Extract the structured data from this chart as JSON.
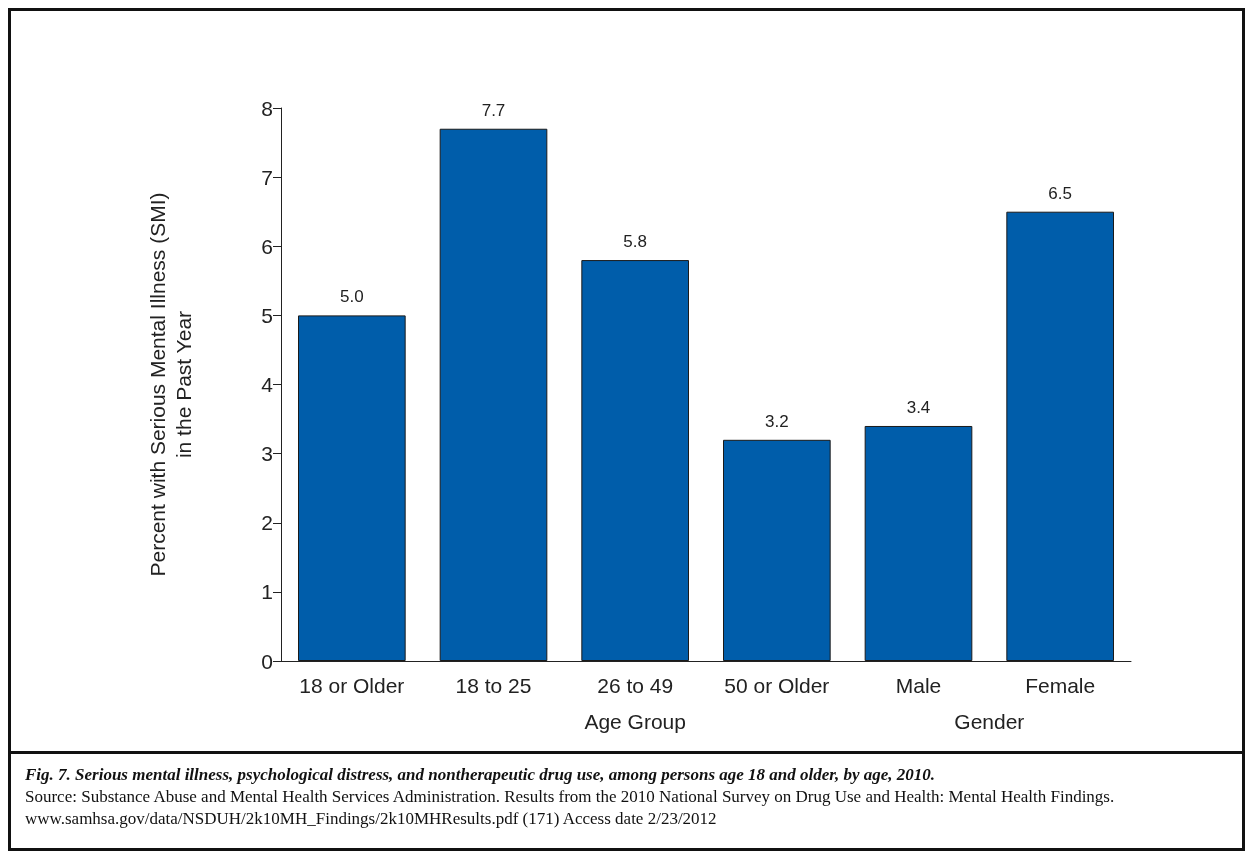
{
  "chart_data": {
    "type": "bar",
    "title": "Fig. 7. Serious mental illness, psychological distress, and nontherapeutic drug use, among persons age 18 and older, by age, 2010.",
    "ylabel": "Percent with Serious Mental Illness (SMI)\nin the Past Year",
    "categories": [
      "18 or Older",
      "18 to 25",
      "26 to 49",
      "50 or Older",
      "Male",
      "Female"
    ],
    "values": [
      5.0,
      7.7,
      5.8,
      3.2,
      3.4,
      6.5
    ],
    "value_labels": [
      "5.0",
      "7.7",
      "5.8",
      "3.2",
      "3.4",
      "6.5"
    ],
    "color": "#005daa",
    "ylim": [
      0,
      8
    ],
    "yticks": [
      0,
      1,
      2,
      3,
      4,
      5,
      6,
      7,
      8
    ],
    "grid": false,
    "annotations": [
      "Age Group",
      "Gender",
      "Source: Substance Abuse and Mental Health Services Administration. Results from the 2010 National Survey on Drug Use and Health: Mental Health Findings. www.samhsa.gov/data/NSDUH/2k10MH_Findings/2k10MHResults.pdf (171) Access date 2/23/2012"
    ]
  }
}
